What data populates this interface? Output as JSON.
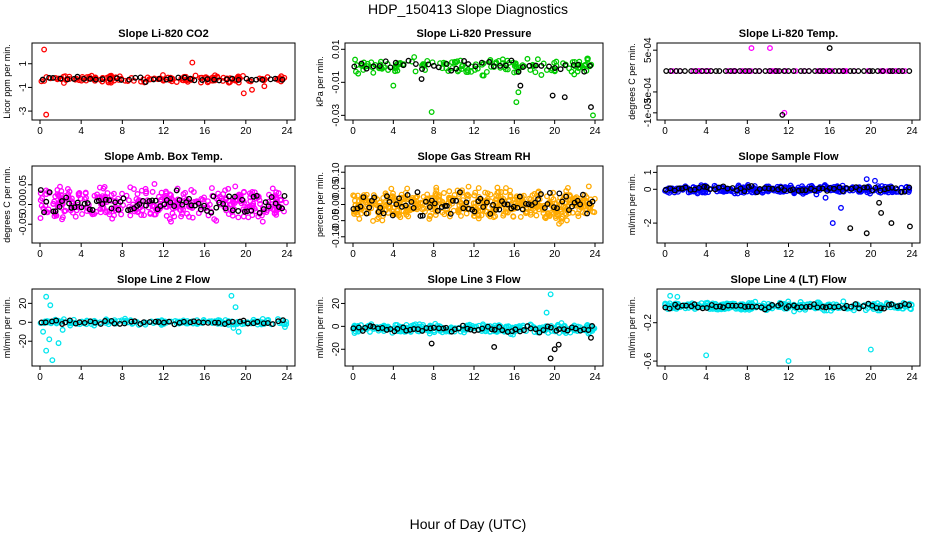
{
  "title": "HDP_150413  Slope Diagnostics",
  "xlabel": "Hour of Day (UTC)",
  "chart_data": [
    {
      "type": "scatter",
      "title": "Slope Li-820 CO2",
      "ylabel": "Licor ppm per min.",
      "color": "#ff0000",
      "xlim": [
        0,
        24
      ],
      "ylim": [
        -3.5,
        2.5
      ],
      "xticks": [
        "0",
        "4",
        "8",
        "12",
        "16",
        "20",
        "24"
      ],
      "yticks": [
        {
          "v": 1,
          "label": "1"
        },
        {
          "v": -1,
          "label": "-1"
        },
        {
          "v": -3,
          "label": "-3"
        }
      ],
      "center": -0.3,
      "spread": 0.25,
      "n": 150,
      "outliers": [
        [
          0.4,
          2.2
        ],
        [
          0.6,
          -3.3
        ],
        [
          14.8,
          1.1
        ],
        [
          19.8,
          -1.5
        ],
        [
          20.6,
          -1.2
        ],
        [
          21.8,
          -0.9
        ]
      ],
      "black_n": 40
    },
    {
      "type": "scatter",
      "title": "Slope Li-820 Pressure",
      "ylabel": "kPa per min.",
      "color": "#00cc00",
      "xlim": [
        0,
        24
      ],
      "ylim": [
        -0.031,
        0.012
      ],
      "xticks": [
        "0",
        "4",
        "8",
        "12",
        "16",
        "20",
        "24"
      ],
      "yticks": [
        {
          "v": 0.01,
          "label": "0.01"
        },
        {
          "v": -0.01,
          "label": "-0.01"
        },
        {
          "v": -0.03,
          "label": "-0.03"
        }
      ],
      "center": 0.0,
      "spread": 0.004,
      "n": 150,
      "outliers": [
        [
          7.8,
          -0.028
        ],
        [
          16.2,
          -0.022
        ],
        [
          16.4,
          -0.016
        ],
        [
          23.8,
          -0.03
        ],
        [
          4.0,
          -0.012
        ]
      ],
      "black_n": 40,
      "black_outliers": [
        [
          16.6,
          -0.012
        ],
        [
          19.8,
          -0.018
        ],
        [
          21.0,
          -0.019
        ],
        [
          23.6,
          -0.025
        ],
        [
          6.8,
          -0.008
        ]
      ]
    },
    {
      "type": "scatter",
      "title": "Slope Li-820 Temp.",
      "ylabel": "degrees C per min.",
      "color": "#ff00ff",
      "xlim": [
        0,
        24
      ],
      "ylim": [
        -0.0011,
        0.0006
      ],
      "xticks": [
        "0",
        "4",
        "8",
        "12",
        "16",
        "20",
        "24"
      ],
      "yticks": [
        {
          "v": 0.0005,
          "label": "5e-04"
        },
        {
          "v": -0.0005,
          "label": "-5e-04"
        },
        {
          "v": -0.001,
          "label": "-1e-03"
        }
      ],
      "center": 0,
      "spread": 0,
      "n": 60,
      "outliers": [
        [
          8.4,
          0.00055
        ],
        [
          10.2,
          0.00055
        ],
        [
          11.6,
          -0.001
        ]
      ],
      "black_n": 50,
      "black_outliers": [
        [
          16.0,
          0.00055
        ],
        [
          11.4,
          -0.00105
        ]
      ]
    },
    {
      "type": "scatter",
      "title": "Slope Amb. Box Temp.",
      "ylabel": "degrees C per min.",
      "color": "#ff00ff",
      "xlim": [
        0,
        24
      ],
      "ylim": [
        -0.09,
        0.09
      ],
      "xticks": [
        "0",
        "4",
        "8",
        "12",
        "16",
        "20",
        "24"
      ],
      "yticks": [
        {
          "v": 0.05,
          "label": "0.05"
        },
        {
          "v": 0,
          "label": "0.00"
        },
        {
          "v": -0.05,
          "label": "-0.05"
        }
      ],
      "center": 0.0,
      "spread": 0.035,
      "n": 380,
      "outliers": [],
      "black_n": 80
    },
    {
      "type": "scatter",
      "title": "Slope Gas Stream RH",
      "ylabel": "percent per min.",
      "color": "#ffaa00",
      "xlim": [
        0,
        24
      ],
      "ylim": [
        -0.11,
        0.11
      ],
      "xticks": [
        "0",
        "4",
        "8",
        "12",
        "16",
        "20",
        "24"
      ],
      "yticks": [
        {
          "v": 0.1,
          "label": "0.10"
        },
        {
          "v": 0.05,
          "label": "0.05"
        },
        {
          "v": 0,
          "label": "0.00"
        },
        {
          "v": -0.05,
          "label": "-0.05"
        },
        {
          "v": -0.1,
          "label": "-0.10"
        }
      ],
      "center": 0.0,
      "spread": 0.04,
      "n": 520,
      "outliers": [],
      "black_n": 80
    },
    {
      "type": "scatter",
      "title": "Slope Sample Flow",
      "ylabel": "ml/min per min.",
      "color": "#0000ff",
      "xlim": [
        0,
        24
      ],
      "ylim": [
        -3.0,
        1.2
      ],
      "xticks": [
        "0",
        "4",
        "8",
        "12",
        "16",
        "20",
        "24"
      ],
      "yticks": [
        {
          "v": 1,
          "label": "1"
        },
        {
          "v": 0,
          "label": "0"
        },
        {
          "v": -2,
          "label": "-2"
        }
      ],
      "center": 0.0,
      "spread": 0.2,
      "n": 300,
      "outliers": [
        [
          16.3,
          -2.0
        ],
        [
          17.1,
          -1.1
        ],
        [
          19.6,
          0.6
        ],
        [
          20.4,
          0.5
        ],
        [
          15.6,
          -0.5
        ]
      ],
      "black_n": 60,
      "black_outliers": [
        [
          18.0,
          -2.3
        ],
        [
          19.6,
          -2.6
        ],
        [
          21.0,
          -1.4
        ],
        [
          22.0,
          -2.0
        ],
        [
          23.8,
          -2.2
        ],
        [
          20.8,
          -0.8
        ]
      ]
    },
    {
      "type": "scatter",
      "title": "Slope Line 2 Flow",
      "ylabel": "ml/min per min.",
      "color": "#00e5ee",
      "xlim": [
        0,
        24
      ],
      "ylim": [
        -43,
        32
      ],
      "xticks": [
        "0",
        "4",
        "8",
        "12",
        "16",
        "20",
        "24"
      ],
      "yticks": [
        {
          "v": 20,
          "label": "20"
        },
        {
          "v": 0,
          "label": "0"
        },
        {
          "v": -20,
          "label": "-20"
        }
      ],
      "center": 0,
      "spread": 2.5,
      "n": 180,
      "outliers": [
        [
          0.6,
          27
        ],
        [
          1.0,
          18
        ],
        [
          0.3,
          -10
        ],
        [
          0.6,
          -30
        ],
        [
          1.2,
          -40
        ],
        [
          1.8,
          -22
        ],
        [
          2.2,
          -8
        ],
        [
          0.9,
          -18
        ],
        [
          18.6,
          28
        ],
        [
          19.0,
          16
        ],
        [
          19.3,
          -10
        ],
        [
          18.8,
          -6
        ],
        [
          23.8,
          -5
        ]
      ],
      "black_n": 50
    },
    {
      "type": "scatter",
      "title": "Slope Line 3 Flow",
      "ylabel": "ml/min per min.",
      "color": "#00e5ee",
      "xlim": [
        0,
        24
      ],
      "ylim": [
        -32,
        30
      ],
      "xticks": [
        "0",
        "4",
        "8",
        "12",
        "16",
        "20",
        "24"
      ],
      "yticks": [
        {
          "v": 20,
          "label": "20"
        },
        {
          "v": 0,
          "label": "0"
        },
        {
          "v": -20,
          "label": "-20"
        }
      ],
      "center": -2,
      "spread": 3.5,
      "n": 320,
      "outliers": [
        [
          19.6,
          28
        ],
        [
          19.2,
          12
        ]
      ],
      "black_n": 60,
      "black_outliers": [
        [
          7.8,
          -15
        ],
        [
          14.0,
          -18
        ],
        [
          19.6,
          -28
        ],
        [
          20.0,
          -20
        ],
        [
          20.4,
          -16
        ],
        [
          23.6,
          -10
        ]
      ]
    },
    {
      "type": "scatter",
      "title": "Slope Line 4 (LT) Flow",
      "ylabel": "ml/min per min.",
      "color": "#00e5ee",
      "xlim": [
        0,
        24
      ],
      "ylim": [
        -0.62,
        0.12
      ],
      "xticks": [
        "0",
        "4",
        "8",
        "12",
        "16",
        "20",
        "24"
      ],
      "yticks": [
        {
          "v": -0.2,
          "label": "-0.2"
        },
        {
          "v": -0.6,
          "label": "-0.6"
        }
      ],
      "center": -0.03,
      "spread": 0.035,
      "n": 320,
      "outliers": [
        [
          4.0,
          -0.54
        ],
        [
          12.0,
          -0.6
        ],
        [
          20.0,
          -0.48
        ],
        [
          0.5,
          0.08
        ],
        [
          1.2,
          0.07
        ]
      ],
      "black_n": 60
    }
  ]
}
